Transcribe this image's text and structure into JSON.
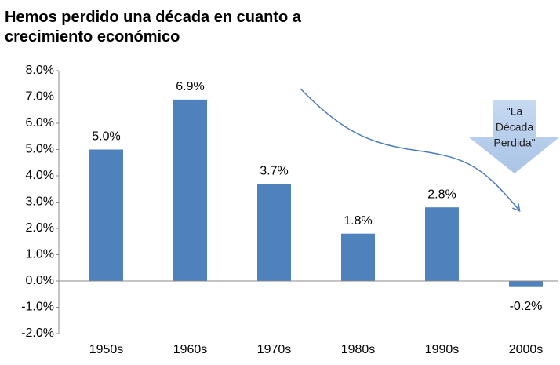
{
  "chart_data": {
    "type": "bar",
    "title": [
      "Hemos perdido una década en cuanto a",
      "crecimiento económico"
    ],
    "categories": [
      "1950s",
      "1960s",
      "1970s",
      "1980s",
      "1990s",
      "2000s"
    ],
    "values": [
      5.0,
      6.9,
      3.7,
      1.8,
      2.8,
      -0.2
    ],
    "value_labels": [
      "5.0%",
      "6.9%",
      "3.7%",
      "1.8%",
      "2.8%",
      "-0.2%"
    ],
    "color": "#4f81bd",
    "ylim": [
      -2,
      8
    ],
    "yticks": [
      {
        "value": 8,
        "label": "8.0%"
      },
      {
        "value": 7,
        "label": "7.0%"
      },
      {
        "value": 6,
        "label": "6.0%"
      },
      {
        "value": 5,
        "label": "5.0%"
      },
      {
        "value": 4,
        "label": "4.0%"
      },
      {
        "value": 3,
        "label": "3.0%"
      },
      {
        "value": 2,
        "label": "2.0%"
      },
      {
        "value": 1,
        "label": "1.0%"
      },
      {
        "value": 0,
        "label": "0.0%"
      },
      {
        "value": -1,
        "label": "-1.0%"
      },
      {
        "value": -2,
        "label": "-2.0%"
      }
    ],
    "grid": false,
    "annotation": [
      "\"La",
      "Década",
      "Perdida\""
    ]
  }
}
